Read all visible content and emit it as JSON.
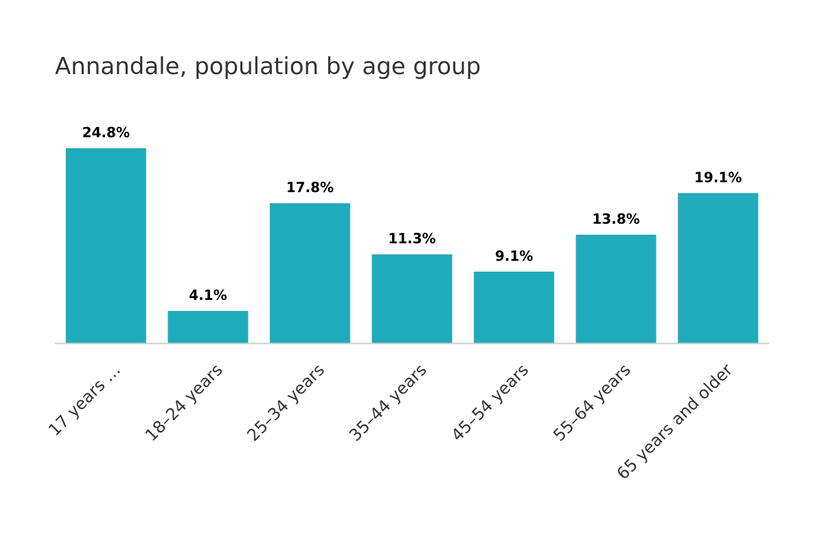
{
  "chart_data": {
    "type": "bar",
    "title": "Annandale, population by age group",
    "categories": [
      "17 years …",
      "18–24 years",
      "25–34 years",
      "35–44 years",
      "45–54 years",
      "55–64 years",
      "65 years and older"
    ],
    "values": [
      24.8,
      4.1,
      17.8,
      11.3,
      9.1,
      13.8,
      19.1
    ],
    "data_labels": [
      "24.8%",
      "4.1%",
      "17.8%",
      "11.3%",
      "9.1%",
      "13.8%",
      "19.1%"
    ],
    "xlabel": "",
    "ylabel": "",
    "ylim": [
      0,
      25
    ],
    "grid": false,
    "legend": "none",
    "bar_color": "#1fabbb",
    "axis_color": "#cccccc"
  }
}
